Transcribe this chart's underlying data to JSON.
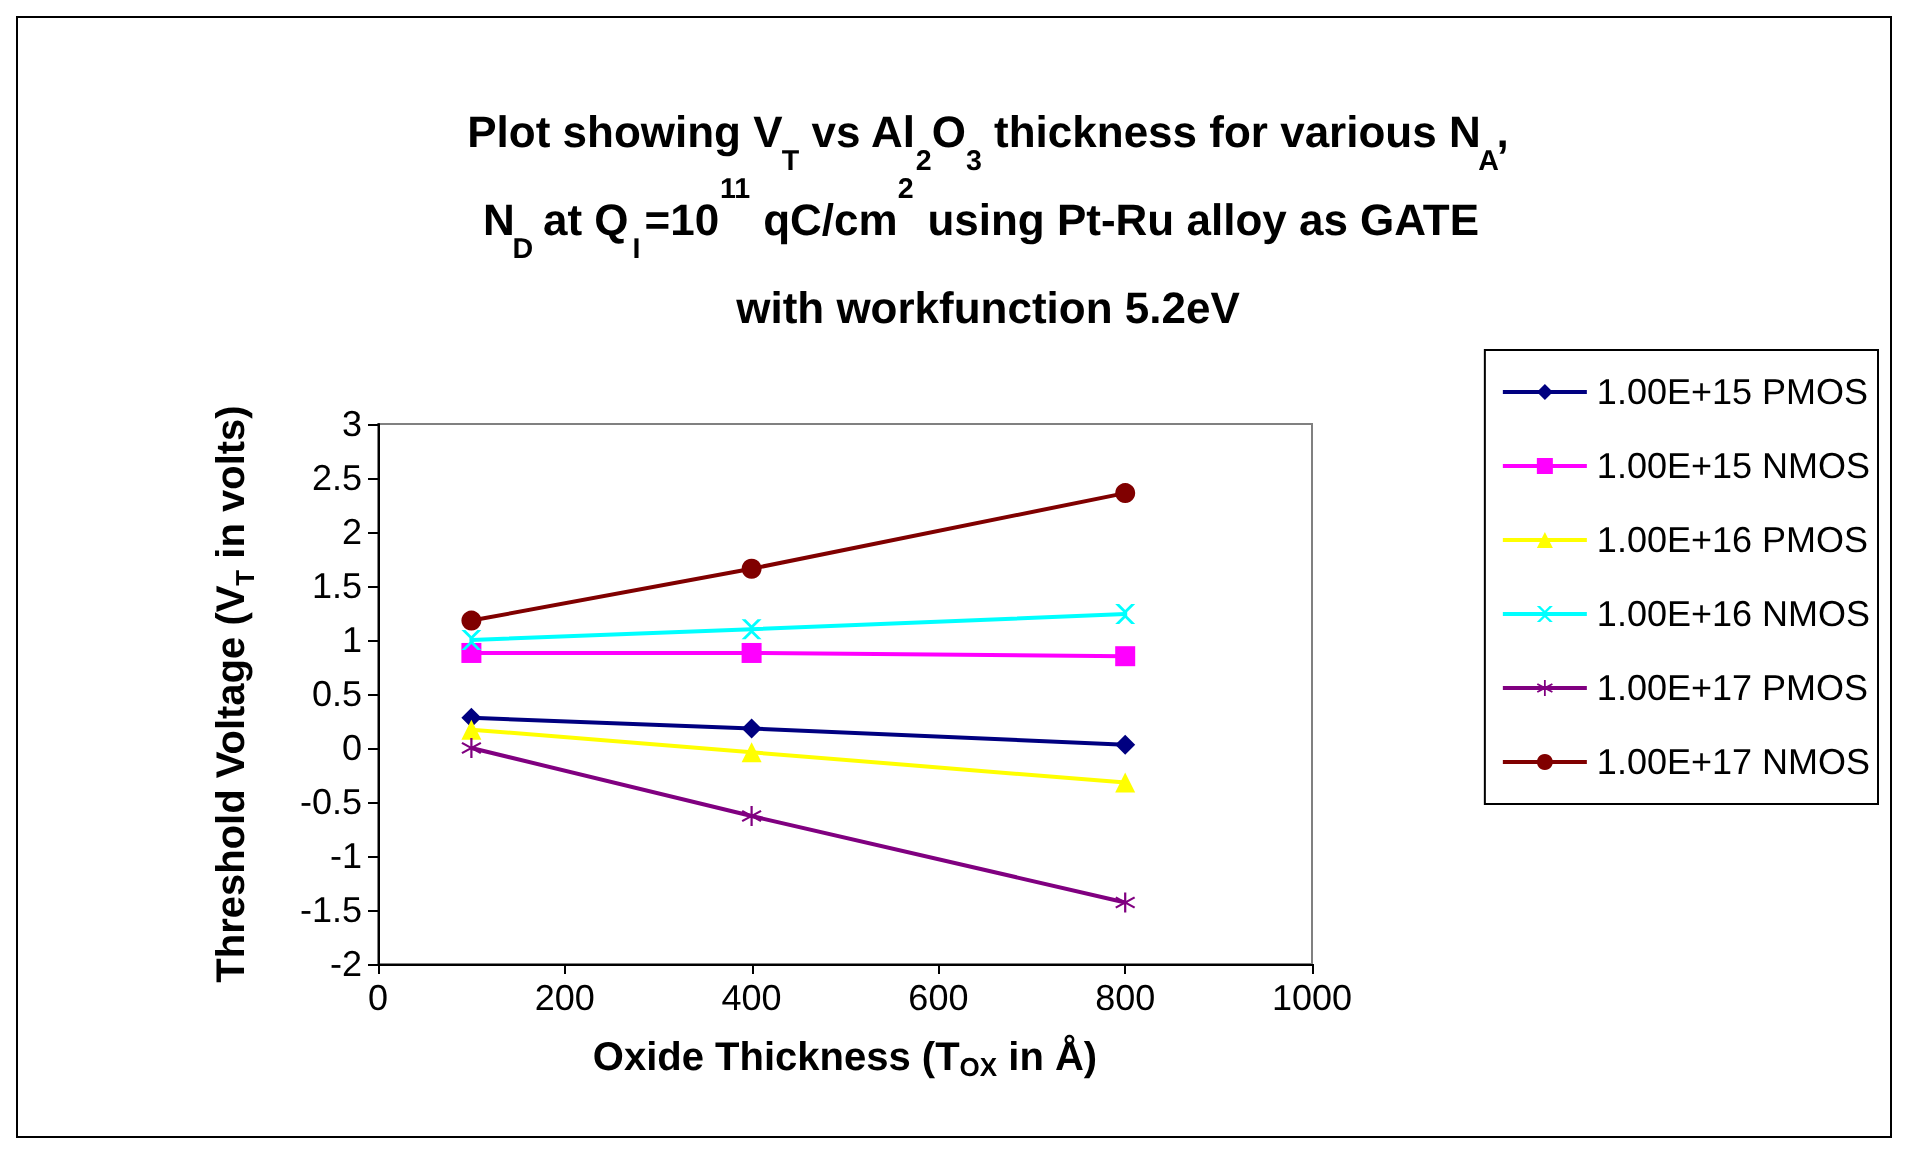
{
  "chart_data": {
    "type": "line",
    "title": "Plot showing V$_{T}$ vs Al$_{2}$O$_{3}$ thickness for various N$_{A}$,N$_{D}$ at Q$_{I}$=10$^{11}$ qC/cm$^{2}$ using Pt-Ru alloy as GATE with workfunction 5.2eV",
    "xlabel": "Oxide Thickness (T$_{OX}$ in Å)",
    "ylabel": "Threshold Voltage (V$_{T}$ in volts)",
    "x": [
      100,
      400,
      800
    ],
    "series": [
      {
        "name": "1.00E+15 PMOS",
        "color": "#000080",
        "marker": "diamond",
        "values": [
          0.28,
          0.18,
          0.03
        ]
      },
      {
        "name": "1.00E+15 NMOS",
        "color": "#ff00ff",
        "marker": "square",
        "values": [
          0.88,
          0.88,
          0.85
        ]
      },
      {
        "name": "1.00E+16 PMOS",
        "color": "#ffff00",
        "marker": "triangle",
        "values": [
          0.17,
          -0.04,
          -0.32
        ]
      },
      {
        "name": "1.00E+16 NMOS",
        "color": "#00ffff",
        "marker": "cross",
        "values": [
          1.0,
          1.1,
          1.24
        ]
      },
      {
        "name": "1.00E+17 PMOS",
        "color": "#800080",
        "marker": "star",
        "values": [
          0.0,
          -0.63,
          -1.43
        ]
      },
      {
        "name": "1.00E+17 NMOS",
        "color": "#800000",
        "marker": "circle",
        "values": [
          1.18,
          1.66,
          2.36
        ]
      }
    ],
    "xlim": [
      0,
      1000
    ],
    "xticks": [
      0,
      200,
      400,
      600,
      800,
      1000
    ],
    "ylim": [
      -2,
      3
    ],
    "yticks": [
      -2,
      -1.5,
      -1,
      -0.5,
      0,
      0.5,
      1,
      1.5,
      2,
      2.5,
      3
    ],
    "grid": false,
    "legend": "right",
    "line_style": "solid"
  }
}
